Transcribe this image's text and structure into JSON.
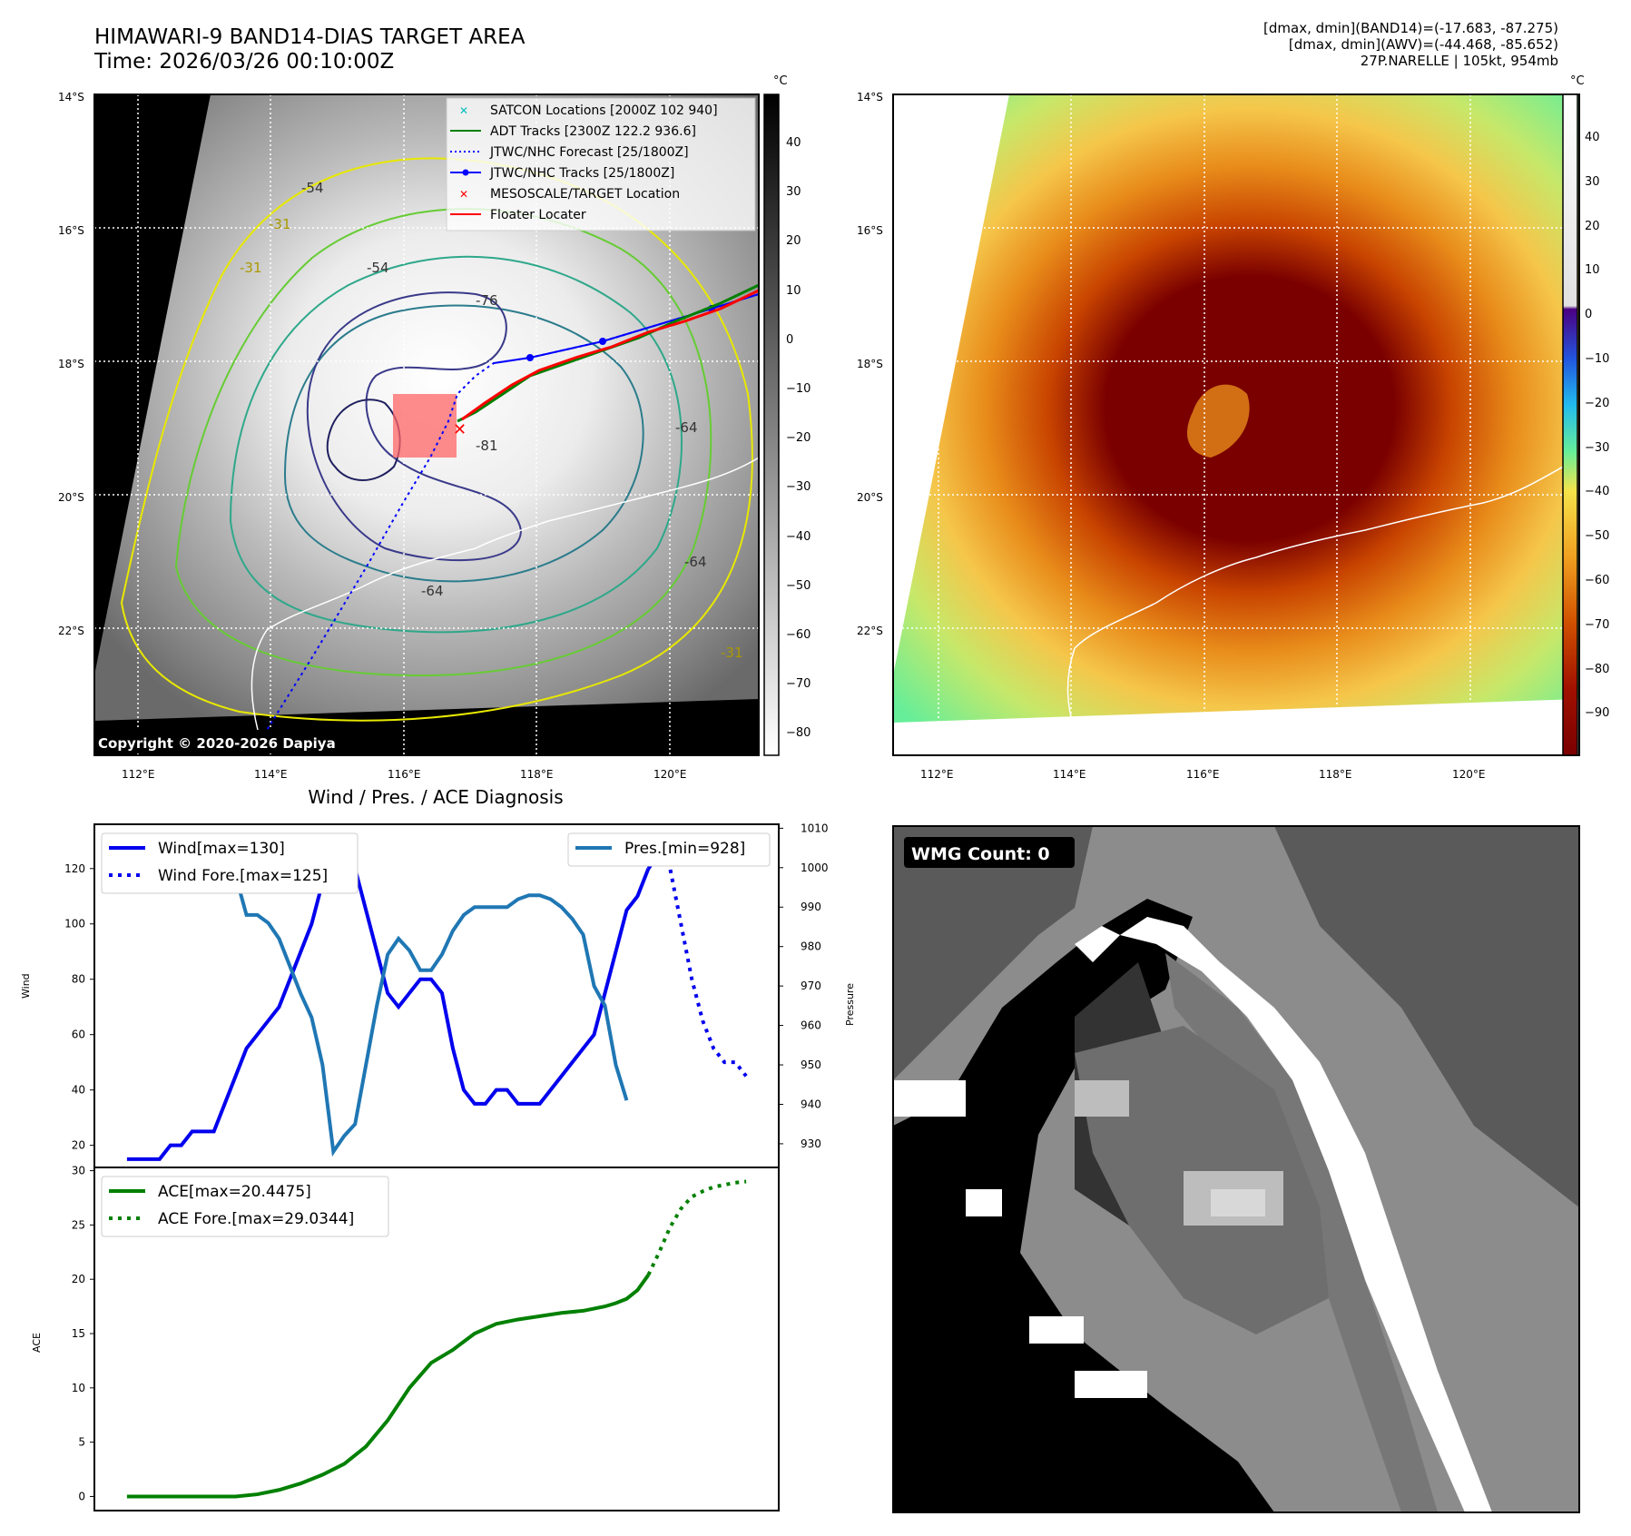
{
  "header": {
    "title_line1": "HIMAWARI-9 BAND14-DIAS TARGET AREA",
    "title_line2": "Time: 2026/03/26 00:10:00Z",
    "info_line1": "[dmax, dmin](BAND14)=(-17.683, -87.275)",
    "info_line2": "[dmax, dmin](AWV)=(-44.468, -85.652)",
    "info_line3": "27P.NARELLE | 105kt, 954mb"
  },
  "map": {
    "lat_labels": [
      "14°S",
      "16°S",
      "18°S",
      "20°S",
      "22°S"
    ],
    "lon_labels": [
      "112°E",
      "114°E",
      "116°E",
      "118°E",
      "120°E"
    ],
    "copyright": "Copyright © 2020-2026 Dapiya",
    "contour_labels": [
      "-54",
      "-54",
      "-31",
      "-31",
      "-76",
      "-64",
      "-81",
      "-64",
      "-31",
      "-64"
    ],
    "legend": [
      {
        "label": "SATCON Locations [2000Z 102 940]",
        "color": "#00bfbf",
        "marker": "x"
      },
      {
        "label": "ADT Tracks [2300Z 122.2 936.6]",
        "color": "#008000",
        "marker": "line"
      },
      {
        "label": "JTWC/NHC Forecast [25/1800Z]",
        "color": "#0000ff",
        "marker": "dotted"
      },
      {
        "label": "JTWC/NHC Tracks [25/1800Z]",
        "color": "#0000ff",
        "marker": "line-dot"
      },
      {
        "label": "MESOSCALE/TARGET Location",
        "color": "#ff0000",
        "marker": "x"
      },
      {
        "label": "Floater Locater",
        "color": "#ff0000",
        "marker": "line"
      }
    ]
  },
  "colorbar_gray": {
    "unit": "°C",
    "ticks": [
      "40",
      "30",
      "20",
      "10",
      "0",
      "−10",
      "−20",
      "−30",
      "−40",
      "−50",
      "−60",
      "−70",
      "−80"
    ]
  },
  "colorbar_color": {
    "unit": "°C",
    "ticks": [
      "40",
      "30",
      "20",
      "10",
      "0",
      "−10",
      "−20",
      "−30",
      "−40",
      "−50",
      "−60",
      "−70",
      "−80",
      "−90"
    ]
  },
  "wmg": {
    "label": "WMG Count: 0"
  },
  "chart_data": [
    {
      "type": "line",
      "title": "Wind / Pres. / ACE Diagnosis",
      "ylabel": "Wind",
      "y2label": "Pressure",
      "ylim": [
        12,
        136
      ],
      "y2lim": [
        924,
        1011
      ],
      "yticks": [
        "20",
        "40",
        "60",
        "80",
        "100",
        "120"
      ],
      "y2ticks": [
        "930",
        "940",
        "950",
        "960",
        "970",
        "980",
        "990",
        "1000",
        "1010"
      ],
      "series": [
        {
          "name": "Wind[max=130]",
          "color": "#0000ee",
          "style": "solid",
          "x": [
            0,
            1,
            2,
            3,
            4,
            5,
            6,
            7,
            8,
            9,
            10,
            11,
            12,
            13,
            14,
            15,
            16,
            17,
            18,
            19,
            20,
            21,
            22,
            23,
            24,
            25,
            26,
            27,
            28,
            29,
            30,
            31,
            32,
            33,
            34,
            35,
            36,
            37,
            38,
            39,
            40,
            41,
            42,
            43,
            44,
            45,
            46,
            47,
            48
          ],
          "values": [
            15,
            15,
            15,
            15,
            20,
            20,
            25,
            25,
            25,
            35,
            45,
            55,
            60,
            65,
            70,
            80,
            90,
            100,
            115,
            130,
            125,
            120,
            105,
            90,
            75,
            70,
            75,
            80,
            80,
            75,
            55,
            40,
            35,
            35,
            40,
            40,
            35,
            35,
            35,
            40,
            45,
            50,
            55,
            60,
            75,
            90,
            105,
            110,
            120
          ]
        },
        {
          "name": "Wind Fore.[max=125]",
          "color": "#0000ee",
          "style": "dotted",
          "x": [
            48,
            49,
            50,
            51,
            52,
            53,
            54,
            55,
            56,
            57
          ],
          "values": [
            120,
            125,
            120,
            100,
            80,
            65,
            55,
            50,
            50,
            45
          ]
        },
        {
          "name": "Pres.[min=928]",
          "color": "#1f77b4",
          "style": "solid",
          "axis": "right",
          "x": [
            0,
            1,
            2,
            3,
            4,
            5,
            6,
            7,
            8,
            9,
            10,
            11,
            12,
            13,
            14,
            15,
            16,
            17,
            18,
            19,
            20,
            21,
            22,
            23,
            24,
            25,
            26,
            27,
            28,
            29,
            30,
            31,
            32,
            33,
            34,
            35,
            36,
            37,
            38,
            39,
            40,
            41,
            42,
            43,
            44,
            45,
            46
          ],
          "values": [
            1008,
            1008,
            1008,
            1006,
            1006,
            1005,
            1004,
            1004,
            1004,
            1004,
            998,
            988,
            988,
            986,
            982,
            975,
            968,
            962,
            950,
            928,
            932,
            935,
            950,
            965,
            978,
            982,
            979,
            974,
            974,
            978,
            984,
            988,
            990,
            990,
            990,
            990,
            992,
            993,
            993,
            992,
            990,
            987,
            983,
            970,
            965,
            950,
            941
          ]
        }
      ]
    },
    {
      "type": "line",
      "ylabel": "ACE",
      "ylim": [
        -1.3,
        30.3
      ],
      "yticks": [
        "0",
        "5",
        "10",
        "15",
        "20",
        "25",
        "30"
      ],
      "series": [
        {
          "name": "ACE[max=20.4475]",
          "color": "#008000",
          "style": "solid",
          "x": [
            0,
            2,
            4,
            6,
            8,
            10,
            12,
            14,
            16,
            18,
            20,
            22,
            24,
            26,
            28,
            30,
            32,
            34,
            36,
            38,
            40,
            42,
            44,
            45,
            46,
            47,
            48
          ],
          "values": [
            0,
            0,
            0,
            0,
            0,
            0,
            0.2,
            0.6,
            1.2,
            2.0,
            3.0,
            4.6,
            7.0,
            10.0,
            12.3,
            13.5,
            15.0,
            15.9,
            16.3,
            16.6,
            16.9,
            17.1,
            17.5,
            17.8,
            18.2,
            19.0,
            20.4
          ]
        },
        {
          "name": "ACE Fore.[max=29.0344]",
          "color": "#008000",
          "style": "dotted",
          "x": [
            48,
            49,
            50,
            51,
            52,
            53,
            54,
            55,
            56,
            57
          ],
          "values": [
            20.4,
            22.5,
            24.8,
            26.5,
            27.6,
            28.1,
            28.5,
            28.7,
            28.9,
            29.0
          ]
        }
      ]
    }
  ]
}
